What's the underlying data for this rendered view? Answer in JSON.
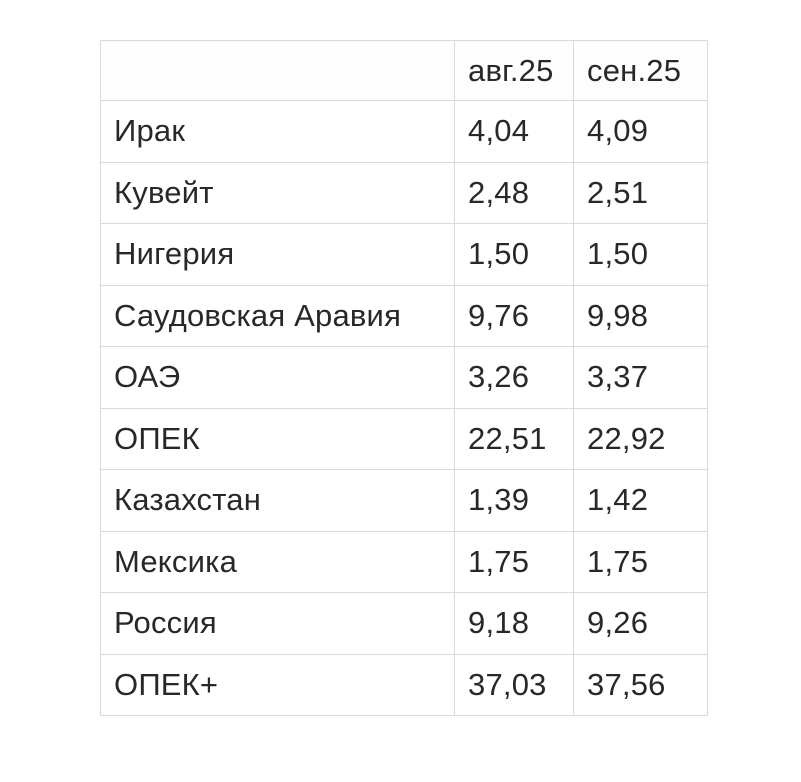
{
  "colors": {
    "background": "#ffffff",
    "cell_background": "#ffffff",
    "border": "#d9d9d9",
    "text": "#282828"
  },
  "table": {
    "columns": [
      "",
      "авг.25",
      "сен.25"
    ],
    "rows": [
      {
        "label": "Ирак",
        "values": [
          "4,04",
          "4,09"
        ]
      },
      {
        "label": "Кувейт",
        "values": [
          "2,48",
          "2,51"
        ]
      },
      {
        "label": "Нигерия",
        "values": [
          "1,50",
          "1,50"
        ]
      },
      {
        "label": "Саудовская Аравия",
        "values": [
          "9,76",
          "9,98"
        ]
      },
      {
        "label": "ОАЭ",
        "values": [
          "3,26",
          "3,37"
        ]
      },
      {
        "label": "ОПЕК",
        "values": [
          "22,51",
          "22,92"
        ]
      },
      {
        "label": "Казахстан",
        "values": [
          "1,39",
          "1,42"
        ]
      },
      {
        "label": "Мексика",
        "values": [
          "1,75",
          "1,75"
        ]
      },
      {
        "label": "Россия",
        "values": [
          "9,18",
          "9,26"
        ]
      },
      {
        "label": "ОПЕК+",
        "values": [
          "37,03",
          "37,56"
        ]
      }
    ]
  },
  "chart_data": {
    "type": "table",
    "title": "",
    "columns": [
      "",
      "авг.25",
      "сен.25"
    ],
    "rows": [
      [
        "Ирак",
        4.04,
        4.09
      ],
      [
        "Кувейт",
        2.48,
        2.51
      ],
      [
        "Нигерия",
        1.5,
        1.5
      ],
      [
        "Саудовская Аравия",
        9.76,
        9.98
      ],
      [
        "ОАЭ",
        3.26,
        3.37
      ],
      [
        "ОПЕК",
        22.51,
        22.92
      ],
      [
        "Казахстан",
        1.39,
        1.42
      ],
      [
        "Мексика",
        1.75,
        1.75
      ],
      [
        "Россия",
        9.18,
        9.26
      ],
      [
        "ОПЕК+",
        37.03,
        37.56
      ]
    ],
    "decimal_separator": ",",
    "layout": {
      "grid": true,
      "header_row": true,
      "first_column_labels": true
    }
  }
}
